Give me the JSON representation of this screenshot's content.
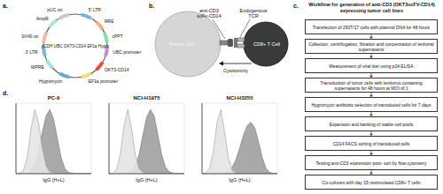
{
  "panels": {
    "a": {
      "label": "a.",
      "plasmid": {
        "name": "pCDH UBC OKT3-CD14 EF1a Hygro",
        "features": [
          "5' LTR",
          "RRE",
          "cPPT",
          "UBC promoter",
          "OKT3-CD14",
          "EF1a promoter",
          "Hygromycin",
          "WPRE",
          "3' LTR",
          "SV40 ori",
          "AmpR",
          "pUC ori"
        ]
      }
    },
    "b": {
      "label": "b.",
      "tumor_cell": "Tumor Cell",
      "scfv_label": [
        "anti-CD3",
        "scFv-CD14"
      ],
      "tcr_label": [
        "Endogenous",
        "TCR"
      ],
      "t_cell": "CD8+ T Cell",
      "effect": "Cytotoxicity"
    },
    "c": {
      "label": "c.",
      "title": "Workflow for generation of anti-CD3 (OKT3scFV-CD14) expressing tumor cell lines",
      "steps": [
        "Transfection of 293T/17 cells with plasmid DNA for 48 hours",
        "Collection, centrifugation, filtration and concentration of lentiviral supernatants",
        "Measurement of viral titer using p24 ELISA",
        "Transduction of tumor cells with lentivirus containing supernatants for 48 hours at MOI of 1",
        "Hygromycin antibiotic selection of transduced cells for 7 days",
        "Expansion and banking of stable cell pools",
        "CD14 FACS sorting of transduced cells",
        "Testing anti-CD3 expression post- sort by flow cytometry",
        "Co-cultures with day 15 restimulated CD8+ T cells"
      ]
    },
    "d": {
      "label": "d."
    }
  },
  "chart_data": [
    {
      "type": "area",
      "title": "PC-9",
      "xlabel": "IgG (H+L)",
      "tick_labels": false,
      "x": [
        0,
        1,
        2,
        3,
        4,
        5,
        6,
        7,
        8,
        9,
        10,
        11,
        12,
        13,
        14,
        15,
        16,
        17,
        18,
        19,
        20
      ],
      "xlim": [
        0,
        20
      ],
      "ylim": [
        0,
        110
      ],
      "series": [
        {
          "color": "#e4e4e4",
          "values": [
            0,
            1,
            5,
            25,
            70,
            100,
            80,
            40,
            12,
            3,
            1,
            0,
            0,
            0,
            0,
            0,
            0,
            0,
            0,
            0,
            0
          ]
        },
        {
          "color": "#a9a9a9",
          "values": [
            0,
            0,
            0,
            1,
            5,
            15,
            35,
            65,
            90,
            100,
            85,
            55,
            25,
            8,
            2,
            1,
            0,
            0,
            0,
            0,
            0
          ]
        }
      ]
    },
    {
      "type": "area",
      "title": "NCI-H1975",
      "xlabel": "IgG (H+L)",
      "tick_labels": false,
      "x": [
        0,
        1,
        2,
        3,
        4,
        5,
        6,
        7,
        8,
        9,
        10,
        11,
        12,
        13,
        14,
        15,
        16,
        17,
        18,
        19,
        20
      ],
      "xlim": [
        0,
        20
      ],
      "ylim": [
        0,
        110
      ],
      "series": [
        {
          "color": "#e4e4e4",
          "values": [
            0,
            1,
            6,
            30,
            75,
            100,
            70,
            30,
            8,
            2,
            0,
            0,
            0,
            0,
            0,
            0,
            0,
            0,
            0,
            0,
            0
          ]
        },
        {
          "color": "#a9a9a9",
          "values": [
            0,
            0,
            0,
            0,
            0,
            1,
            4,
            12,
            30,
            60,
            88,
            100,
            90,
            60,
            30,
            10,
            3,
            1,
            0,
            0,
            0
          ]
        }
      ]
    },
    {
      "type": "area",
      "title": "NCI-H3255",
      "xlabel": "IgG (H+L)",
      "tick_labels": false,
      "x": [
        0,
        1,
        2,
        3,
        4,
        5,
        6,
        7,
        8,
        9,
        10,
        11,
        12,
        13,
        14,
        15,
        16,
        17,
        18,
        19,
        20
      ],
      "xlim": [
        0,
        20
      ],
      "ylim": [
        0,
        110
      ],
      "series": [
        {
          "color": "#e4e4e4",
          "values": [
            0,
            1,
            8,
            35,
            80,
            100,
            65,
            25,
            6,
            1,
            0,
            0,
            0,
            0,
            0,
            0,
            0,
            0,
            0,
            0,
            0
          ]
        },
        {
          "color": "#a9a9a9",
          "values": [
            0,
            0,
            0,
            0,
            0,
            0,
            1,
            4,
            10,
            22,
            40,
            60,
            75,
            80,
            72,
            50,
            25,
            8,
            2,
            0,
            0
          ]
        }
      ]
    }
  ]
}
